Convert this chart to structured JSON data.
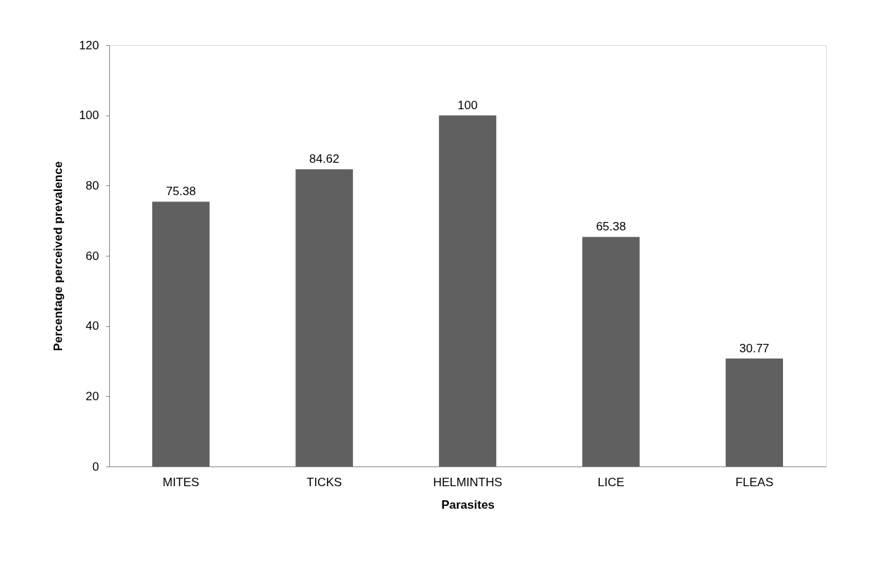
{
  "chart_data": {
    "type": "bar",
    "xlabel": "Parasites",
    "ylabel": "Percentage perceived prevalence",
    "categories": [
      "MITES",
      "TICKS",
      "HELMINTHS",
      "LICE",
      "FLEAS"
    ],
    "values": [
      75.38,
      84.62,
      100,
      65.38,
      30.77
    ],
    "color": "#606060",
    "ylim": [
      0,
      120
    ],
    "yticks": [
      0,
      20,
      40,
      60,
      80,
      100,
      120
    ],
    "grid": false,
    "data_labels": true
  }
}
